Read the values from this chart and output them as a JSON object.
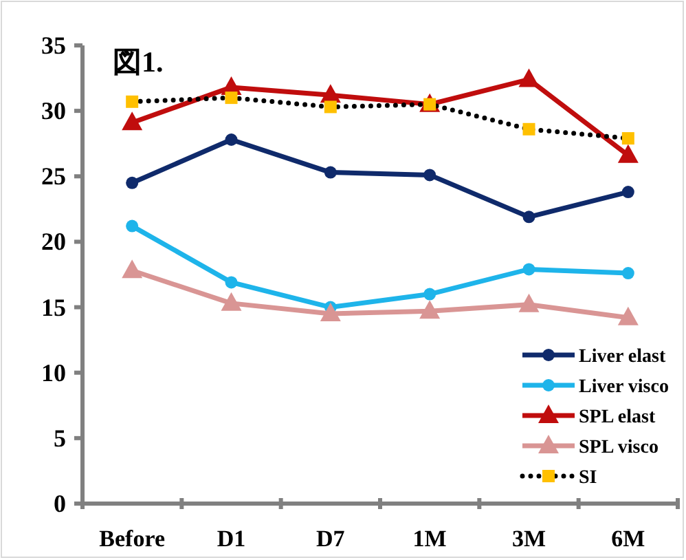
{
  "chart_data": {
    "type": "line",
    "title": "図1.",
    "categories": [
      "Before",
      "D1",
      "D7",
      "1M",
      "3M",
      "6M"
    ],
    "series": [
      {
        "name": "Liver elast",
        "color": "#0f2a6b",
        "marker": "circle",
        "line_style": "solid",
        "values": [
          24.5,
          27.8,
          25.3,
          25.1,
          21.9,
          23.8
        ]
      },
      {
        "name": "Liver visco",
        "color": "#1eb4ea",
        "marker": "circle",
        "line_style": "solid",
        "values": [
          21.2,
          16.9,
          15.0,
          16.0,
          17.9,
          17.6
        ]
      },
      {
        "name": "SPL elast",
        "color": "#c00d0d",
        "marker": "triangle",
        "line_style": "solid",
        "values": [
          29.1,
          31.8,
          31.2,
          30.5,
          32.4,
          26.6
        ]
      },
      {
        "name": "SPL visco",
        "color": "#d99594",
        "marker": "triangle",
        "line_style": "solid",
        "values": [
          17.8,
          15.3,
          14.5,
          14.7,
          15.2,
          14.2
        ]
      },
      {
        "name": "SI",
        "color": "#ffc000",
        "marker": "square",
        "line_style": "dotted",
        "values": [
          30.7,
          31.0,
          30.3,
          30.5,
          28.6,
          27.9
        ]
      }
    ],
    "ylim": [
      0,
      35
    ],
    "yticks": [
      0,
      5,
      10,
      15,
      20,
      25,
      30,
      35
    ],
    "grid": false,
    "legend": "bottom right"
  }
}
